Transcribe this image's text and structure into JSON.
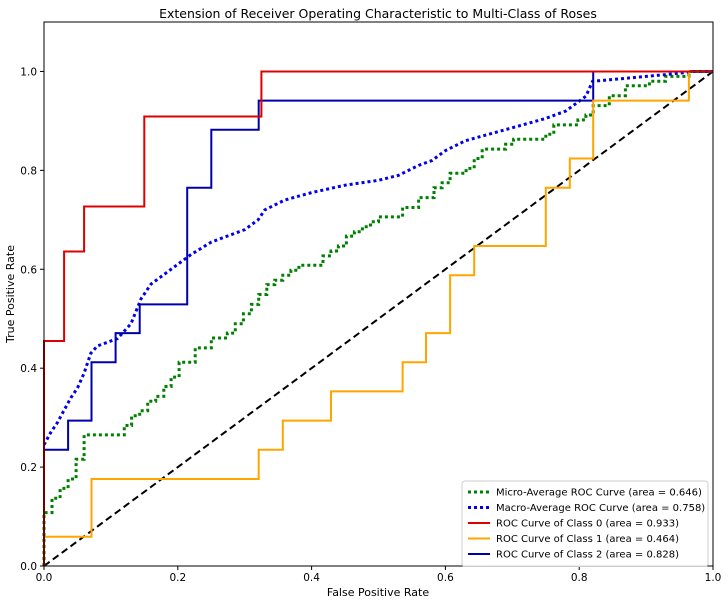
{
  "chart_data": {
    "type": "line",
    "title": "Extension of Receiver Operating Characteristic to Multi-Class of Roses",
    "xlabel": "False Positive Rate",
    "ylabel": "True Positive Rate",
    "xlim": [
      0.0,
      1.0
    ],
    "ylim": [
      0.0,
      1.1
    ],
    "xticks": [
      "0.0",
      "0.2",
      "0.4",
      "0.6",
      "0.8",
      "1.0"
    ],
    "yticks": [
      "0.0",
      "0.2",
      "0.4",
      "0.6",
      "0.8",
      "1.0"
    ],
    "grid": false,
    "legend_position": "lower-right",
    "series": [
      {
        "name": "Micro-Average ROC Curve (area = 0.646)",
        "color": "#008000",
        "style": "dotted",
        "x": [
          0.0,
          0.0,
          0.012,
          0.012,
          0.024,
          0.024,
          0.036,
          0.036,
          0.048,
          0.048,
          0.06,
          0.06,
          0.071,
          0.071,
          0.12,
          0.12,
          0.131,
          0.131,
          0.143,
          0.143,
          0.155,
          0.155,
          0.167,
          0.167,
          0.179,
          0.179,
          0.19,
          0.19,
          0.202,
          0.202,
          0.226,
          0.226,
          0.25,
          0.25,
          0.274,
          0.274,
          0.286,
          0.286,
          0.298,
          0.298,
          0.31,
          0.31,
          0.321,
          0.321,
          0.333,
          0.333,
          0.345,
          0.345,
          0.357,
          0.357,
          0.369,
          0.369,
          0.381,
          0.381,
          0.417,
          0.417,
          0.429,
          0.429,
          0.44,
          0.44,
          0.452,
          0.452,
          0.464,
          0.464,
          0.476,
          0.476,
          0.488,
          0.488,
          0.5,
          0.5,
          0.536,
          0.536,
          0.56,
          0.56,
          0.583,
          0.583,
          0.595,
          0.595,
          0.607,
          0.607,
          0.631,
          0.631,
          0.643,
          0.643,
          0.655,
          0.655,
          0.69,
          0.69,
          0.702,
          0.702,
          0.75,
          0.75,
          0.762,
          0.762,
          0.798,
          0.798,
          0.81,
          0.81,
          0.821,
          0.821,
          0.845,
          0.845,
          0.869,
          0.869,
          0.905,
          0.905,
          0.929,
          0.929,
          0.964,
          0.964,
          1.0
        ],
        "y": [
          0.0,
          0.108,
          0.108,
          0.137,
          0.137,
          0.157,
          0.157,
          0.176,
          0.176,
          0.216,
          0.216,
          0.265,
          0.265,
          0.265,
          0.265,
          0.284,
          0.284,
          0.304,
          0.304,
          0.314,
          0.314,
          0.333,
          0.333,
          0.343,
          0.343,
          0.363,
          0.363,
          0.382,
          0.382,
          0.412,
          0.412,
          0.441,
          0.441,
          0.461,
          0.461,
          0.471,
          0.471,
          0.49,
          0.49,
          0.51,
          0.51,
          0.529,
          0.529,
          0.549,
          0.549,
          0.569,
          0.569,
          0.578,
          0.578,
          0.588,
          0.588,
          0.598,
          0.598,
          0.608,
          0.608,
          0.627,
          0.627,
          0.637,
          0.637,
          0.647,
          0.647,
          0.667,
          0.667,
          0.676,
          0.676,
          0.686,
          0.686,
          0.696,
          0.696,
          0.706,
          0.706,
          0.725,
          0.725,
          0.745,
          0.745,
          0.765,
          0.765,
          0.775,
          0.775,
          0.794,
          0.794,
          0.804,
          0.804,
          0.824,
          0.824,
          0.843,
          0.843,
          0.853,
          0.853,
          0.863,
          0.863,
          0.873,
          0.873,
          0.892,
          0.892,
          0.902,
          0.902,
          0.912,
          0.912,
          0.931,
          0.931,
          0.951,
          0.951,
          0.971,
          0.971,
          0.98,
          0.98,
          0.99,
          0.99,
          1.0,
          1.0
        ]
      },
      {
        "name": "Macro-Average ROC Curve (area = 0.758)",
        "color": "#0000ee",
        "style": "dotted",
        "x": [
          0.0,
          0.01,
          0.02,
          0.03,
          0.04,
          0.05,
          0.06,
          0.07,
          0.08,
          0.09,
          0.11,
          0.13,
          0.145,
          0.16,
          0.18,
          0.2,
          0.22,
          0.25,
          0.27,
          0.3,
          0.32,
          0.33,
          0.36,
          0.4,
          0.45,
          0.5,
          0.53,
          0.56,
          0.58,
          0.6,
          0.63,
          0.67,
          0.71,
          0.75,
          0.78,
          0.81,
          0.82,
          0.86,
          0.9,
          0.94,
          0.97,
          1.0
        ],
        "y": [
          0.245,
          0.27,
          0.29,
          0.315,
          0.34,
          0.36,
          0.39,
          0.43,
          0.445,
          0.45,
          0.46,
          0.49,
          0.54,
          0.57,
          0.59,
          0.61,
          0.63,
          0.655,
          0.665,
          0.68,
          0.7,
          0.72,
          0.74,
          0.755,
          0.77,
          0.78,
          0.79,
          0.81,
          0.82,
          0.84,
          0.86,
          0.875,
          0.89,
          0.905,
          0.92,
          0.95,
          0.98,
          0.985,
          0.99,
          0.995,
          1.0,
          1.0
        ]
      },
      {
        "name": "ROC Curve of Class 0 (area = 0.933)",
        "color": "#dd0000",
        "style": "solid",
        "x": [
          0.0,
          0.0,
          0.03,
          0.03,
          0.06,
          0.06,
          0.15,
          0.15,
          0.325,
          0.325,
          1.0
        ],
        "y": [
          0.0,
          0.455,
          0.455,
          0.636,
          0.636,
          0.727,
          0.727,
          0.909,
          0.909,
          1.0,
          1.0
        ]
      },
      {
        "name": "ROC Curve of Class 1 (area = 0.464)",
        "color": "#ffa500",
        "style": "solid",
        "x": [
          0.0,
          0.0,
          0.071,
          0.071,
          0.321,
          0.321,
          0.357,
          0.357,
          0.429,
          0.429,
          0.536,
          0.536,
          0.571,
          0.571,
          0.607,
          0.607,
          0.643,
          0.643,
          0.75,
          0.75,
          0.786,
          0.786,
          0.821,
          0.821,
          0.964,
          0.964,
          1.0
        ],
        "y": [
          0.0,
          0.059,
          0.059,
          0.176,
          0.176,
          0.235,
          0.235,
          0.294,
          0.294,
          0.353,
          0.353,
          0.412,
          0.412,
          0.471,
          0.471,
          0.588,
          0.588,
          0.647,
          0.647,
          0.765,
          0.765,
          0.824,
          0.824,
          0.941,
          0.941,
          1.0,
          1.0
        ]
      },
      {
        "name": "ROC Curve of Class 2 (area = 0.828)",
        "color": "#0000aa",
        "style": "solid",
        "x": [
          0.0,
          0.0,
          0.036,
          0.036,
          0.071,
          0.071,
          0.107,
          0.107,
          0.143,
          0.143,
          0.214,
          0.214,
          0.25,
          0.25,
          0.321,
          0.321,
          0.821,
          0.821,
          1.0
        ],
        "y": [
          0.0,
          0.235,
          0.235,
          0.294,
          0.294,
          0.412,
          0.412,
          0.471,
          0.471,
          0.529,
          0.529,
          0.765,
          0.765,
          0.882,
          0.882,
          0.941,
          0.941,
          1.0,
          1.0
        ]
      },
      {
        "color": "#000000",
        "style": "dashed",
        "x": [
          0.0,
          1.0
        ],
        "y": [
          0.0,
          1.0
        ]
      }
    ]
  }
}
